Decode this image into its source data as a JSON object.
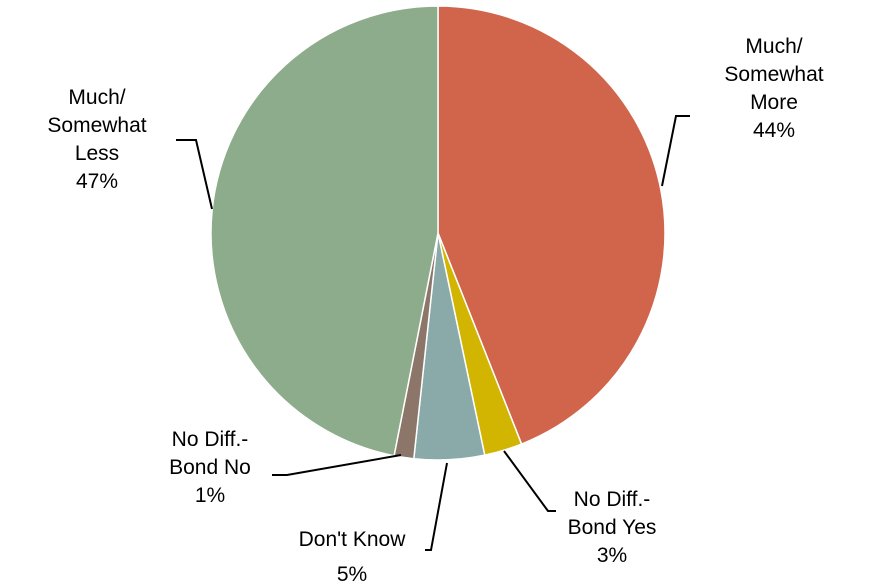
{
  "chart_data": {
    "type": "pie",
    "title": "",
    "slices": [
      {
        "label_lines": [
          "Much/",
          "Somewhat",
          "More"
        ],
        "pct_label": "44%",
        "value": 44,
        "color": "#D0654B"
      },
      {
        "label_lines": [
          "No Diff.-",
          "Bond Yes"
        ],
        "pct_label": "3%",
        "value": 2.7,
        "color": "#D1B500"
      },
      {
        "label_lines": [
          "Don't Know"
        ],
        "pct_label": "5%",
        "value": 5.0,
        "color": "#8AA9A9"
      },
      {
        "label_lines": [
          "No Diff.-",
          "Bond No"
        ],
        "pct_label": "1%",
        "value": 1.4,
        "color": "#8B7669"
      },
      {
        "label_lines": [
          "Much/",
          "Somewhat",
          "Less"
        ],
        "pct_label": "47%",
        "value": 46.9,
        "color": "#8DAC8B"
      }
    ]
  }
}
